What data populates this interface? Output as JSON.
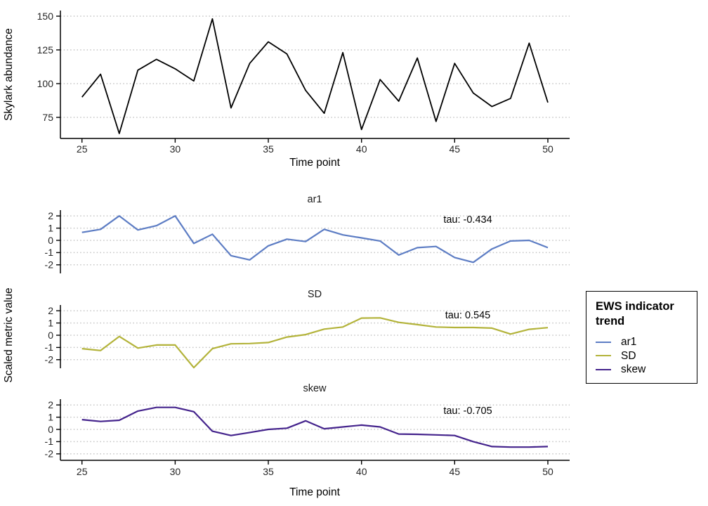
{
  "axes": {
    "x_ticks": [
      25,
      30,
      35,
      40,
      45,
      50
    ],
    "bottom_ylabel": "Scaled metric value",
    "bottom_xlabel": "Time point"
  },
  "legend": {
    "title": "EWS indicator trend",
    "entries": [
      {
        "label": "ar1",
        "color": "#5d7dc4"
      },
      {
        "label": "SD",
        "color": "#b3b33a"
      },
      {
        "label": "skew",
        "color": "#44238c"
      }
    ]
  },
  "chart_data": [
    {
      "type": "line",
      "name": "abundance",
      "ylabel": "Skylark abundance",
      "xlabel": "Time point",
      "color": "#000000",
      "grid": "dotted-horizontal",
      "x": [
        25,
        26,
        27,
        28,
        29,
        30,
        31,
        32,
        33,
        34,
        35,
        36,
        37,
        38,
        39,
        40,
        41,
        42,
        43,
        44,
        45,
        46,
        47,
        48,
        49,
        50
      ],
      "values": [
        90,
        107,
        63,
        110,
        118,
        111,
        102,
        148,
        82,
        115,
        131,
        122,
        95,
        78,
        123,
        66,
        103,
        87,
        119,
        72,
        115,
        93,
        83,
        89,
        130,
        86
      ],
      "yticks": [
        75,
        100,
        125,
        150
      ],
      "xticks": [
        25,
        30,
        35,
        40,
        45,
        50
      ],
      "ylim": [
        59,
        154
      ],
      "xlim": [
        23.8,
        51.2
      ]
    },
    {
      "type": "line",
      "name": "ar1",
      "facet": "ar1",
      "annotation": "tau: -0.434",
      "color": "#5d7dc4",
      "x": [
        25,
        26,
        27,
        28,
        29,
        30,
        31,
        32,
        33,
        34,
        35,
        36,
        37,
        38,
        39,
        40,
        41,
        42,
        43,
        44,
        45,
        46,
        47,
        48,
        49,
        50
      ],
      "values": [
        0.65,
        0.9,
        2.0,
        0.85,
        1.2,
        2.0,
        -0.25,
        0.5,
        -1.25,
        -1.6,
        -0.45,
        0.1,
        -0.1,
        0.9,
        0.45,
        0.2,
        -0.05,
        -1.2,
        -0.6,
        -0.5,
        -1.4,
        -1.8,
        -0.7,
        -0.05,
        0.0,
        -0.6
      ],
      "yticks": [
        -2,
        -1,
        0,
        1,
        2
      ],
      "ylim": [
        -2.7,
        2.5
      ]
    },
    {
      "type": "line",
      "name": "SD",
      "facet": "SD",
      "annotation": "tau: 0.545",
      "color": "#b3b33a",
      "x": [
        25,
        26,
        27,
        28,
        29,
        30,
        31,
        32,
        33,
        34,
        35,
        36,
        37,
        38,
        39,
        40,
        41,
        42,
        43,
        44,
        45,
        46,
        47,
        48,
        49,
        50
      ],
      "values": [
        -1.1,
        -1.25,
        -0.1,
        -1.05,
        -0.8,
        -0.8,
        -2.65,
        -1.1,
        -0.7,
        -0.68,
        -0.6,
        -0.15,
        0.05,
        0.5,
        0.67,
        1.4,
        1.42,
        1.05,
        0.87,
        0.67,
        0.63,
        0.63,
        0.58,
        0.1,
        0.48,
        0.62
      ],
      "yticks": [
        -2,
        -1,
        0,
        1,
        2
      ],
      "ylim": [
        -2.7,
        2.5
      ]
    },
    {
      "type": "line",
      "name": "skew",
      "facet": "skew",
      "annotation": "tau: -0.705",
      "color": "#44238c",
      "x": [
        25,
        26,
        27,
        28,
        29,
        30,
        31,
        32,
        33,
        34,
        35,
        36,
        37,
        38,
        39,
        40,
        41,
        42,
        43,
        44,
        45,
        46,
        47,
        48,
        49,
        50
      ],
      "values": [
        0.8,
        0.65,
        0.75,
        1.5,
        1.8,
        1.8,
        1.45,
        -0.15,
        -0.5,
        -0.25,
        0.0,
        0.1,
        0.7,
        0.05,
        0.2,
        0.35,
        0.2,
        -0.38,
        -0.4,
        -0.45,
        -0.5,
        -1.0,
        -1.4,
        -1.45,
        -1.45,
        -1.4
      ],
      "yticks": [
        -2,
        -1,
        0,
        1,
        2
      ],
      "ylim": [
        -2.7,
        2.5
      ]
    }
  ]
}
